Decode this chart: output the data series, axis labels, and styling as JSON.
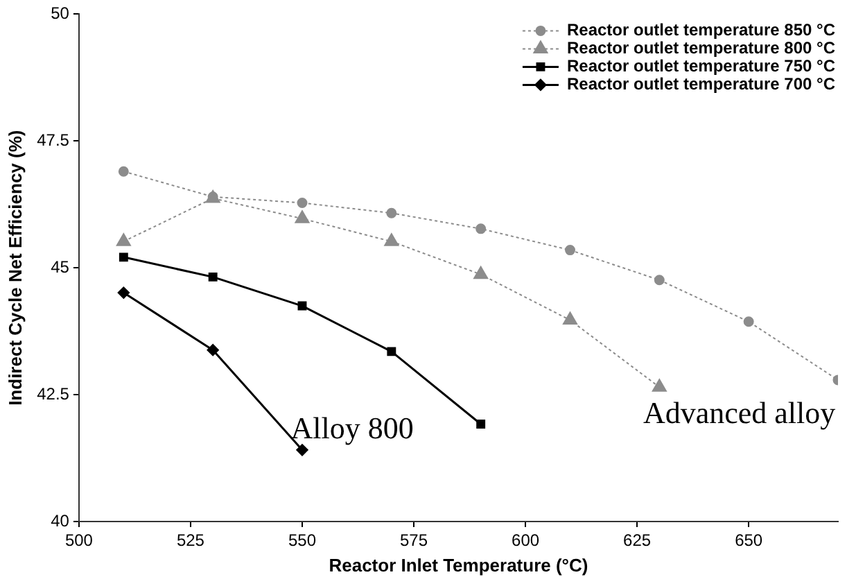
{
  "chart_data": {
    "type": "line",
    "xlabel": "Reactor Inlet Temperature (°C)",
    "ylabel": "Indirect Cycle Net Efficiency (%)",
    "xlim": [
      500,
      670
    ],
    "xticks": [
      500,
      525,
      550,
      575,
      600,
      625,
      650
    ],
    "ylim": [
      40,
      50
    ],
    "yticks": [
      40,
      42.5,
      45,
      47.5,
      50
    ],
    "grid": false,
    "legend": "top right",
    "series": [
      {
        "name": "Reactor outlet temperature 850 °C",
        "color": "#8c8c8c",
        "marker": "circle",
        "line_style": "dotted",
        "x": [
          510,
          530,
          550,
          570,
          590,
          610,
          630,
          650,
          670
        ],
        "values": [
          46.9,
          46.4,
          46.28,
          46.08,
          45.77,
          45.35,
          44.76,
          43.94,
          42.79
        ]
      },
      {
        "name": "Reactor outlet temperature 800 °C",
        "color": "#8c8c8c",
        "marker": "triangle",
        "line_style": "dotted",
        "x": [
          510,
          530,
          550,
          570,
          590,
          610,
          630
        ],
        "values": [
          45.52,
          46.37,
          45.97,
          45.52,
          44.87,
          43.97,
          42.65
        ]
      },
      {
        "name": "Reactor outlet temperature 750 °C",
        "color": "#000000",
        "marker": "square",
        "line_style": "solid",
        "x": [
          510,
          530,
          550,
          570,
          590
        ],
        "values": [
          45.21,
          44.82,
          44.25,
          43.35,
          41.92
        ]
      },
      {
        "name": "Reactor outlet temperature 700 °C",
        "color": "#000000",
        "marker": "diamond",
        "line_style": "solid",
        "x": [
          510,
          530,
          550
        ],
        "values": [
          44.51,
          43.38,
          41.41
        ]
      }
    ],
    "annotations": [
      "Alloy 800",
      "Advanced alloy"
    ]
  }
}
